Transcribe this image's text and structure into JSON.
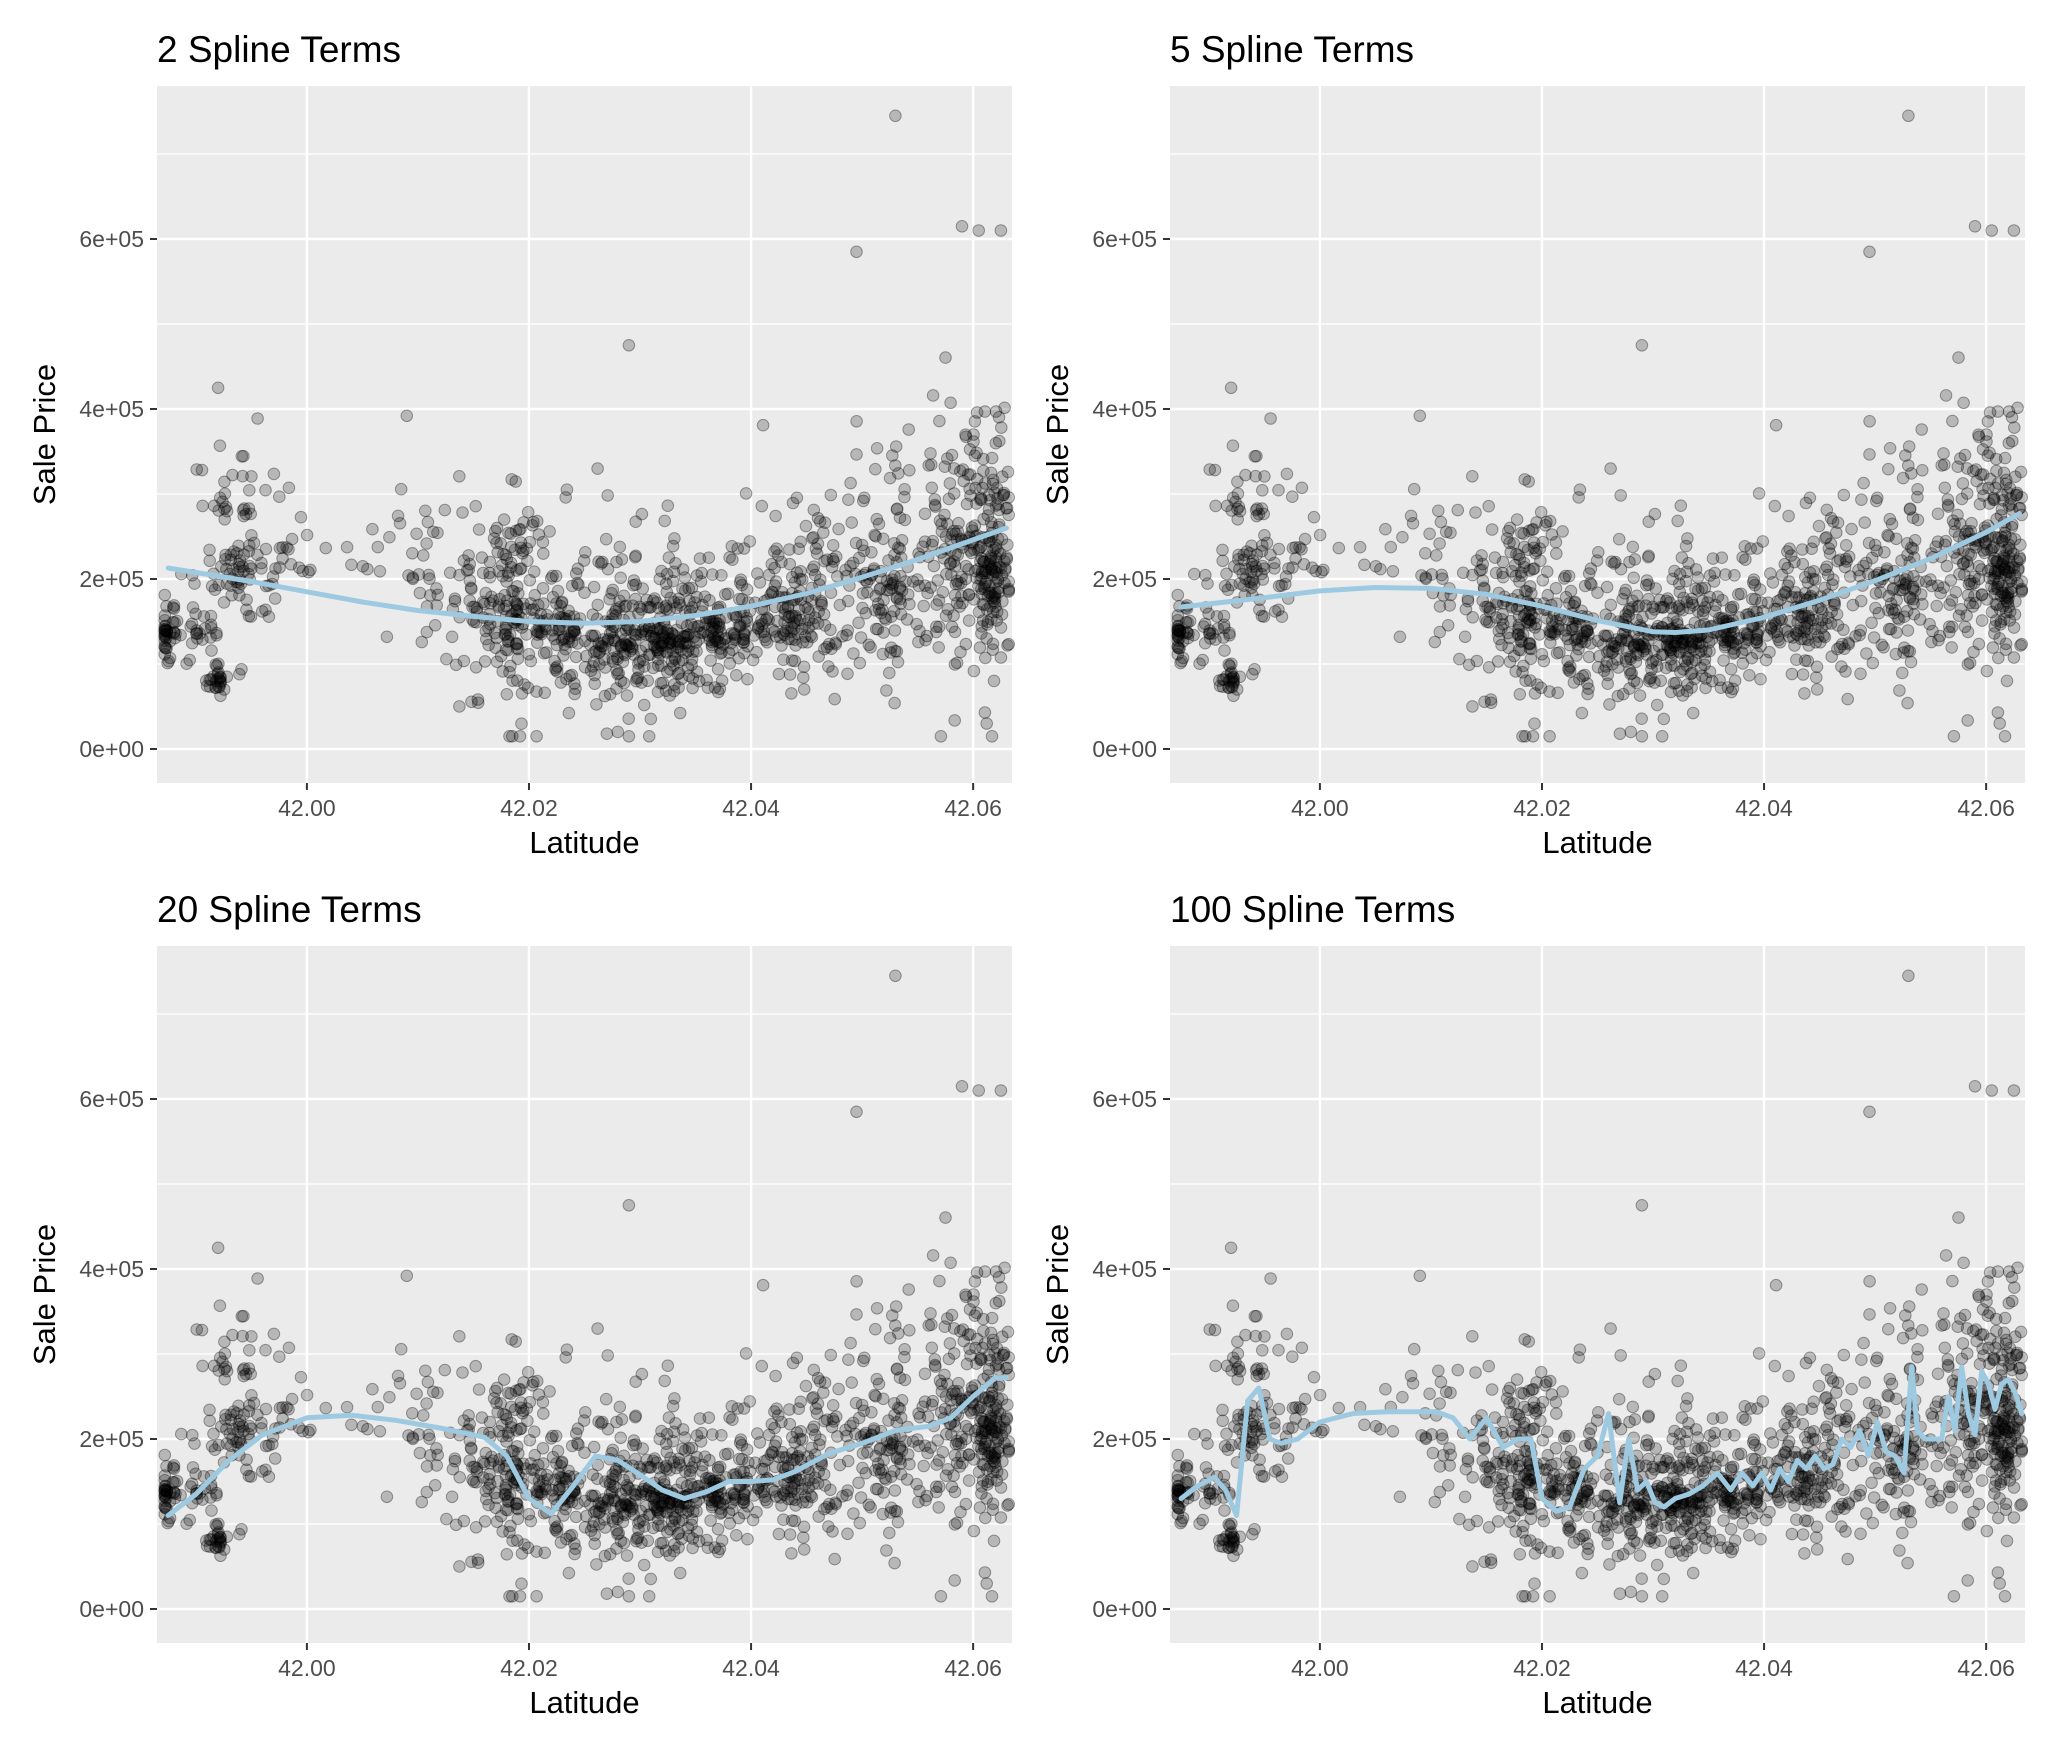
{
  "chart_data": [
    {
      "type": "scatter",
      "title": "2 Spline Terms",
      "xlabel": "Latitude",
      "ylabel": "Sale Price",
      "xlim": [
        41.9865,
        42.0635
      ],
      "ylim": [
        -40000,
        780000
      ],
      "x_ticks": [
        "42.00",
        "42.02",
        "42.04",
        "42.06"
      ],
      "y_ticks": [
        "0e+00",
        "2e+05",
        "4e+05",
        "6e+05"
      ],
      "grid": true,
      "colors": {
        "panel_bg": "#ebebeb",
        "grid": "#ffffff",
        "points": "#000000",
        "fit_line": "#9ecae1"
      },
      "fit": {
        "x": [
          41.9875,
          41.995,
          42.0,
          42.005,
          42.01,
          42.015,
          42.02,
          42.025,
          42.03,
          42.035,
          42.04,
          42.045,
          42.05,
          42.055,
          42.06,
          42.063
        ],
        "y": [
          213000,
          197000,
          185000,
          173000,
          163000,
          156000,
          150000,
          148000,
          150000,
          157000,
          168000,
          183000,
          202000,
          223000,
          246000,
          260000
        ]
      }
    },
    {
      "type": "scatter",
      "title": "5 Spline Terms",
      "xlabel": "Latitude",
      "ylabel": "Sale Price",
      "xlim": [
        41.9865,
        42.0635
      ],
      "ylim": [
        -40000,
        780000
      ],
      "x_ticks": [
        "42.00",
        "42.02",
        "42.04",
        "42.06"
      ],
      "y_ticks": [
        "0e+00",
        "2e+05",
        "4e+05",
        "6e+05"
      ],
      "grid": true,
      "colors": {
        "panel_bg": "#ebebeb",
        "grid": "#ffffff",
        "points": "#000000",
        "fit_line": "#9ecae1"
      },
      "fit": {
        "x": [
          41.9875,
          41.995,
          42.0,
          42.005,
          42.01,
          42.015,
          42.02,
          42.025,
          42.03,
          42.032,
          42.035,
          42.04,
          42.045,
          42.05,
          42.055,
          42.06,
          42.063
        ],
        "y": [
          167000,
          178000,
          186000,
          190000,
          189000,
          182000,
          168000,
          151000,
          138000,
          137000,
          140000,
          155000,
          175000,
          198000,
          224000,
          255000,
          277000
        ]
      }
    },
    {
      "type": "scatter",
      "title": "20 Spline Terms",
      "xlabel": "Latitude",
      "ylabel": "Sale Price",
      "xlim": [
        41.9865,
        42.0635
      ],
      "ylim": [
        -40000,
        780000
      ],
      "x_ticks": [
        "42.00",
        "42.02",
        "42.04",
        "42.06"
      ],
      "y_ticks": [
        "0e+00",
        "2e+05",
        "4e+05",
        "6e+05"
      ],
      "grid": true,
      "colors": {
        "panel_bg": "#ebebeb",
        "grid": "#ffffff",
        "points": "#000000",
        "fit_line": "#9ecae1"
      },
      "fit": {
        "x": [
          41.9875,
          41.99,
          41.993,
          41.996,
          42.0,
          42.004,
          42.008,
          42.012,
          42.016,
          42.018,
          42.02,
          42.022,
          42.024,
          42.026,
          42.028,
          42.03,
          42.032,
          42.034,
          42.036,
          42.038,
          42.04,
          42.042,
          42.044,
          42.047,
          42.05,
          42.053,
          42.056,
          42.058,
          42.06,
          42.062,
          42.063
        ],
        "y": [
          110000,
          135000,
          175000,
          205000,
          225000,
          228000,
          222000,
          213000,
          202000,
          180000,
          130000,
          112000,
          145000,
          180000,
          175000,
          158000,
          140000,
          130000,
          138000,
          150000,
          150000,
          152000,
          162000,
          183000,
          195000,
          210000,
          215000,
          225000,
          250000,
          272000,
          272000
        ]
      }
    },
    {
      "type": "scatter",
      "title": "100 Spline Terms",
      "xlabel": "Latitude",
      "ylabel": "Sale Price",
      "xlim": [
        41.9865,
        42.0635
      ],
      "ylim": [
        -40000,
        780000
      ],
      "x_ticks": [
        "42.00",
        "42.02",
        "42.04",
        "42.06"
      ],
      "y_ticks": [
        "0e+00",
        "2e+05",
        "4e+05",
        "6e+05"
      ],
      "grid": true,
      "colors": {
        "panel_bg": "#ebebeb",
        "grid": "#ffffff",
        "points": "#000000",
        "fit_line": "#9ecae1"
      },
      "fit": {
        "x": [
          41.9875,
          41.989,
          41.9905,
          41.9915,
          41.9925,
          41.9935,
          41.9945,
          41.9955,
          41.9965,
          41.998,
          42.0,
          42.003,
          42.006,
          42.0085,
          42.0105,
          42.012,
          42.0135,
          42.015,
          42.0165,
          42.0178,
          42.019,
          42.02,
          42.0213,
          42.0225,
          42.0238,
          42.025,
          42.026,
          42.027,
          42.0278,
          42.0286,
          42.0294,
          42.0302,
          42.031,
          42.032,
          42.0332,
          42.0345,
          42.0358,
          42.037,
          42.038,
          42.039,
          42.0398,
          42.0406,
          42.0414,
          42.0422,
          42.043,
          42.0438,
          42.0446,
          42.0454,
          42.0462,
          42.047,
          42.0478,
          42.0486,
          42.0494,
          42.0502,
          42.051,
          42.0518,
          42.0526,
          42.0533,
          42.0538,
          42.0545,
          42.0553,
          42.056,
          42.0566,
          42.0572,
          42.0578,
          42.0584,
          42.059,
          42.0596,
          42.0602,
          42.0608,
          42.0614,
          42.062,
          42.0626,
          42.0632
        ],
        "y": [
          130000,
          145000,
          155000,
          140000,
          110000,
          245000,
          260000,
          200000,
          195000,
          200000,
          220000,
          230000,
          232000,
          232000,
          232000,
          225000,
          200000,
          225000,
          190000,
          200000,
          200000,
          130000,
          115000,
          120000,
          165000,
          180000,
          230000,
          125000,
          200000,
          140000,
          150000,
          125000,
          120000,
          130000,
          135000,
          145000,
          160000,
          140000,
          160000,
          145000,
          160000,
          140000,
          165000,
          150000,
          175000,
          165000,
          180000,
          165000,
          170000,
          200000,
          190000,
          210000,
          180000,
          220000,
          185000,
          180000,
          160000,
          285000,
          210000,
          200000,
          200000,
          200000,
          250000,
          210000,
          285000,
          230000,
          205000,
          280000,
          265000,
          235000,
          265000,
          270000,
          255000,
          230000
        ]
      }
    }
  ]
}
